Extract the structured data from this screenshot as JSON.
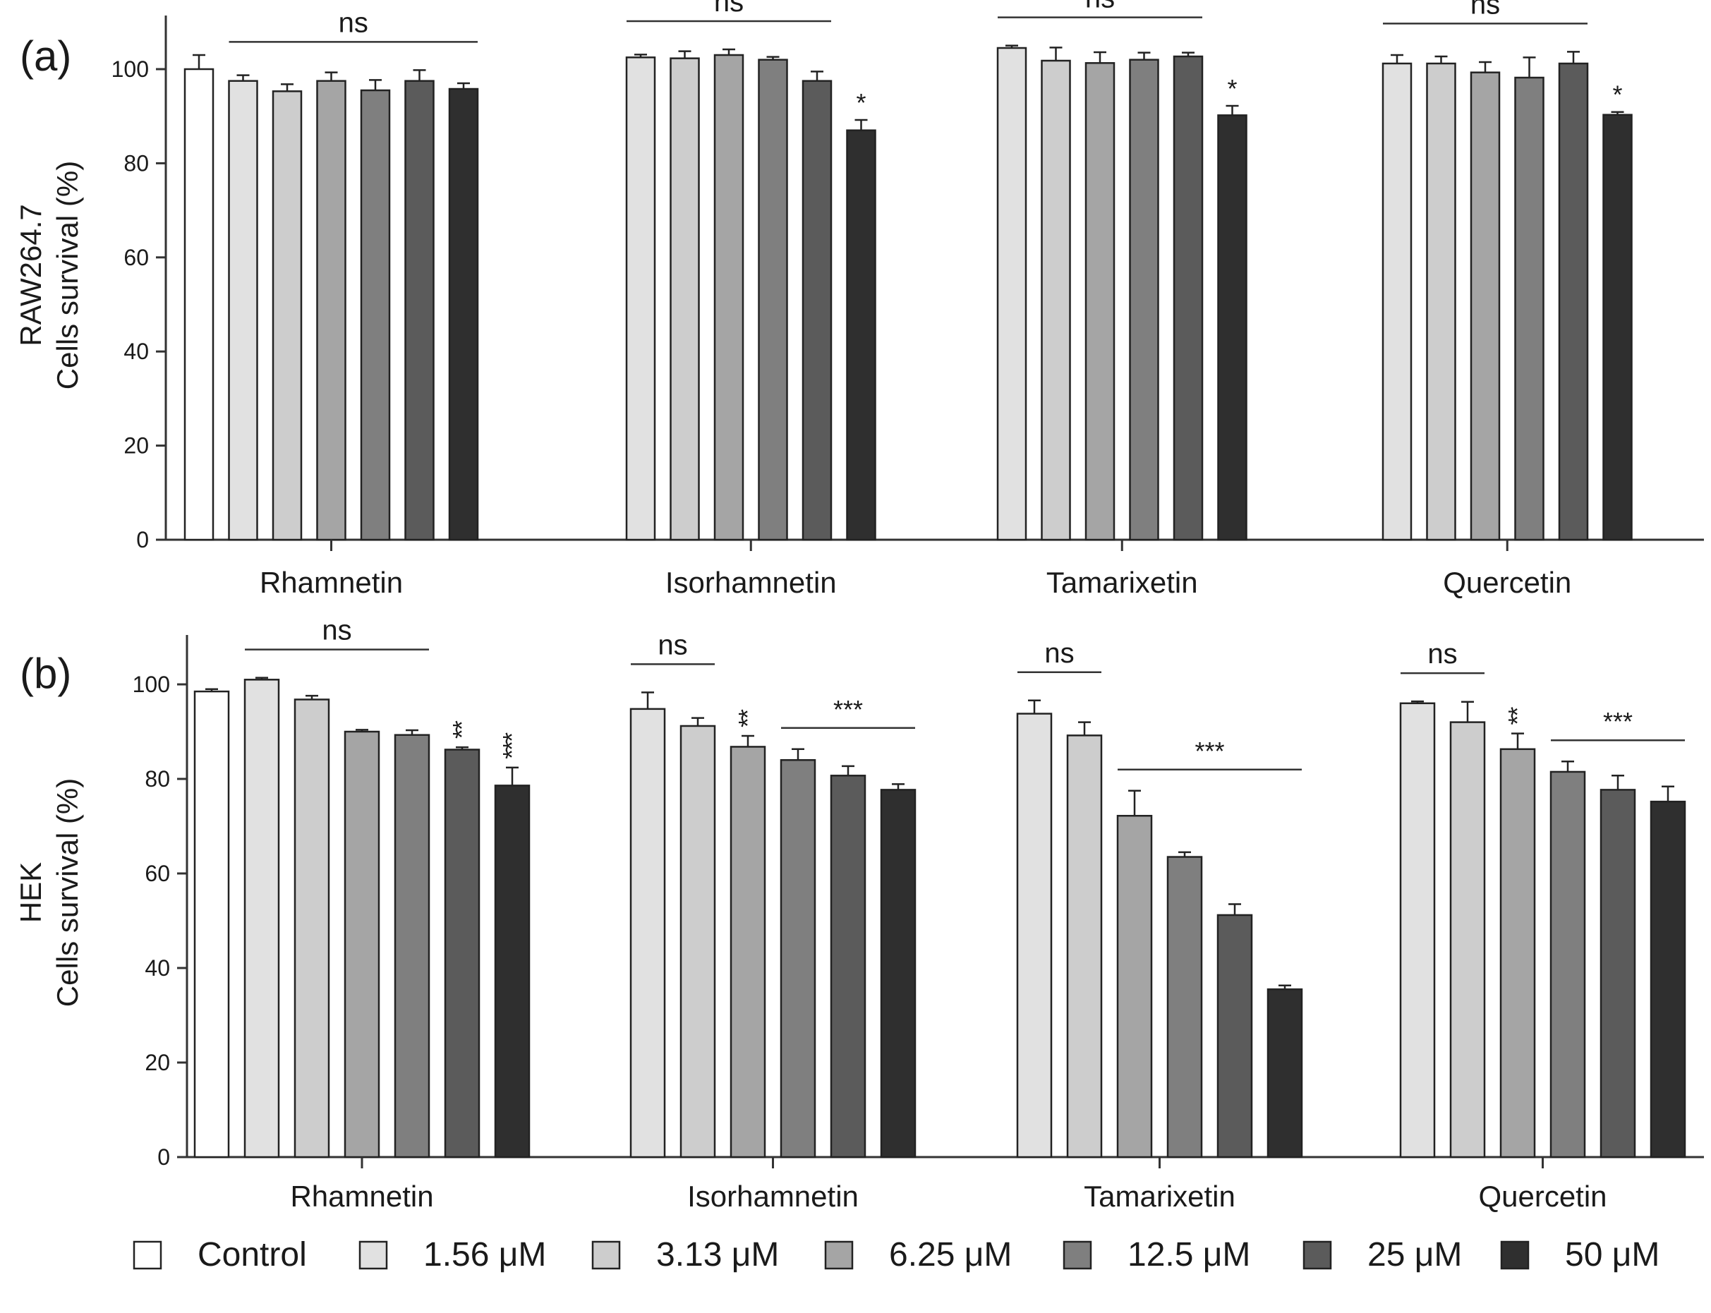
{
  "legend": {
    "items": [
      {
        "label": "Control",
        "color": "#ffffff"
      },
      {
        "label": "1.56 μM",
        "color": "#e1e1e1"
      },
      {
        "label": "3.13 μM",
        "color": "#cdcdcd"
      },
      {
        "label": "6.25 μM",
        "color": "#a5a5a5"
      },
      {
        "label": "12.5 μM",
        "color": "#7f7f7f"
      },
      {
        "label": "25 μM",
        "color": "#5b5b5b"
      },
      {
        "label": "50 μM",
        "color": "#2f2f2f"
      }
    ]
  },
  "chart_data": [
    {
      "type": "bar",
      "panel_label": "(a)",
      "ylabel_line1": "RAW264.7",
      "ylabel_line2": "Cells survival (%)",
      "ylim": [
        0,
        110
      ],
      "yticks": [
        "0",
        "20",
        "40",
        "60",
        "80",
        "100"
      ],
      "groups": [
        {
          "name": "Rhamnetin",
          "bars": [
            {
              "series": "Control",
              "value": 100,
              "err": 3
            },
            {
              "series": "1.56 μM",
              "value": 97.5,
              "err": 1.2
            },
            {
              "series": "3.13 μM",
              "value": 95.3,
              "err": 1.5
            },
            {
              "series": "6.25 μM",
              "value": 97.5,
              "err": 1.8
            },
            {
              "series": "12.5 μM",
              "value": 95.5,
              "err": 2.2
            },
            {
              "series": "25 μM",
              "value": 97.5,
              "err": 2.3
            },
            {
              "series": "50 μM",
              "value": 95.8,
              "err": 1.2
            }
          ]
        },
        {
          "name": "Isorhamnetin",
          "bars": [
            {
              "series": "1.56 μM",
              "value": 102.5,
              "err": 0.6
            },
            {
              "series": "3.13 μM",
              "value": 102.3,
              "err": 1.5
            },
            {
              "series": "6.25 μM",
              "value": 103,
              "err": 1.2
            },
            {
              "series": "12.5 μM",
              "value": 102,
              "err": 0.6
            },
            {
              "series": "25 μM",
              "value": 97.5,
              "err": 2
            },
            {
              "series": "50 μM",
              "value": 87,
              "err": 2.2
            }
          ]
        },
        {
          "name": "Tamarixetin",
          "bars": [
            {
              "series": "1.56 μM",
              "value": 104.5,
              "err": 0.5
            },
            {
              "series": "3.13 μM",
              "value": 101.8,
              "err": 2.8
            },
            {
              "series": "6.25 μM",
              "value": 101.3,
              "err": 2.3
            },
            {
              "series": "12.5 μM",
              "value": 102,
              "err": 1.5
            },
            {
              "series": "25 μM",
              "value": 102.7,
              "err": 0.8
            },
            {
              "series": "50 μM",
              "value": 90.2,
              "err": 2
            }
          ]
        },
        {
          "name": "Quercetin",
          "bars": [
            {
              "series": "1.56 μM",
              "value": 101.2,
              "err": 1.8
            },
            {
              "series": "3.13 μM",
              "value": 101.2,
              "err": 1.5
            },
            {
              "series": "6.25 μM",
              "value": 99.3,
              "err": 2.2
            },
            {
              "series": "12.5 μM",
              "value": 98.2,
              "err": 4.3
            },
            {
              "series": "25 μM",
              "value": 101.2,
              "err": 2.5
            },
            {
              "series": "50 μM",
              "value": 90.3,
              "err": 0.6
            }
          ]
        }
      ],
      "annotations": [
        {
          "type": "bracket",
          "text": "ns",
          "group": 0,
          "from": 1,
          "to": 6
        },
        {
          "type": "bracket",
          "text": "ns",
          "group": 1,
          "from": 0,
          "to": 4
        },
        {
          "type": "bracket",
          "text": "ns",
          "group": 2,
          "from": 0,
          "to": 4
        },
        {
          "type": "bracket",
          "text": "ns",
          "group": 3,
          "from": 0,
          "to": 4
        },
        {
          "type": "star",
          "text": "*",
          "group": 1,
          "bar": 5
        },
        {
          "type": "star",
          "text": "*",
          "group": 2,
          "bar": 5
        },
        {
          "type": "star",
          "text": "*",
          "group": 3,
          "bar": 5
        }
      ]
    },
    {
      "type": "bar",
      "panel_label": "(b)",
      "ylabel_line1": "HEK",
      "ylabel_line2": "Cells survival (%)",
      "ylim": [
        0,
        110
      ],
      "yticks": [
        "0",
        "20",
        "40",
        "60",
        "80",
        "100"
      ],
      "groups": [
        {
          "name": "Rhamnetin",
          "bars": [
            {
              "series": "Control",
              "value": 98.5,
              "err": 0.5
            },
            {
              "series": "1.56 μM",
              "value": 101,
              "err": 0.4
            },
            {
              "series": "3.13 μM",
              "value": 96.8,
              "err": 0.8
            },
            {
              "series": "6.25 μM",
              "value": 90,
              "err": 0.4
            },
            {
              "series": "12.5 μM",
              "value": 89.3,
              "err": 1
            },
            {
              "series": "25 μM",
              "value": 86.2,
              "err": 0.5
            },
            {
              "series": "50 μM",
              "value": 78.6,
              "err": 3.8
            }
          ]
        },
        {
          "name": "Isorhamnetin",
          "bars": [
            {
              "series": "1.56 μM",
              "value": 94.8,
              "err": 3.5
            },
            {
              "series": "3.13 μM",
              "value": 91.2,
              "err": 1.7
            },
            {
              "series": "6.25 μM",
              "value": 86.8,
              "err": 2.3
            },
            {
              "series": "12.5 μM",
              "value": 84,
              "err": 2.3
            },
            {
              "series": "25 μM",
              "value": 80.7,
              "err": 2
            },
            {
              "series": "50 μM",
              "value": 77.7,
              "err": 1.2
            }
          ]
        },
        {
          "name": "Tamarixetin",
          "bars": [
            {
              "series": "1.56 μM",
              "value": 93.8,
              "err": 2.8
            },
            {
              "series": "3.13 μM",
              "value": 89.2,
              "err": 2.8
            },
            {
              "series": "6.25 μM",
              "value": 72.2,
              "err": 5.3
            },
            {
              "series": "12.5 μM",
              "value": 63.5,
              "err": 1
            },
            {
              "series": "25 μM",
              "value": 51.2,
              "err": 2.3
            },
            {
              "series": "50 μM",
              "value": 35.5,
              "err": 0.8
            }
          ]
        },
        {
          "name": "Quercetin",
          "bars": [
            {
              "series": "1.56 μM",
              "value": 96,
              "err": 0.4
            },
            {
              "series": "3.13 μM",
              "value": 92,
              "err": 4.3
            },
            {
              "series": "6.25 μM",
              "value": 86.3,
              "err": 3.3
            },
            {
              "series": "12.5 μM",
              "value": 81.5,
              "err": 2.2
            },
            {
              "series": "25 μM",
              "value": 77.7,
              "err": 3
            },
            {
              "series": "50 μM",
              "value": 75.2,
              "err": 3.2
            }
          ]
        }
      ],
      "annotations": [
        {
          "type": "bracket",
          "text": "ns",
          "group": 0,
          "from": 1,
          "to": 4
        },
        {
          "type": "bracket",
          "text": "ns",
          "group": 1,
          "from": 0,
          "to": 1
        },
        {
          "type": "bracket",
          "text": "ns",
          "group": 2,
          "from": 0,
          "to": 1
        },
        {
          "type": "bracket",
          "text": "ns",
          "group": 3,
          "from": 0,
          "to": 1
        },
        {
          "type": "bracket",
          "text": "***",
          "group": 1,
          "from": 3,
          "to": 5
        },
        {
          "type": "bracket",
          "text": "***",
          "group": 2,
          "from": 2,
          "to": 5
        },
        {
          "type": "bracket",
          "text": "***",
          "group": 3,
          "from": 3,
          "to": 5
        },
        {
          "type": "vstar",
          "text": "**",
          "group": 0,
          "bar": 5
        },
        {
          "type": "vstar",
          "text": "***",
          "group": 0,
          "bar": 6
        },
        {
          "type": "vstar",
          "text": "**",
          "group": 1,
          "bar": 2
        },
        {
          "type": "vstar",
          "text": "**",
          "group": 3,
          "bar": 2
        }
      ]
    }
  ]
}
